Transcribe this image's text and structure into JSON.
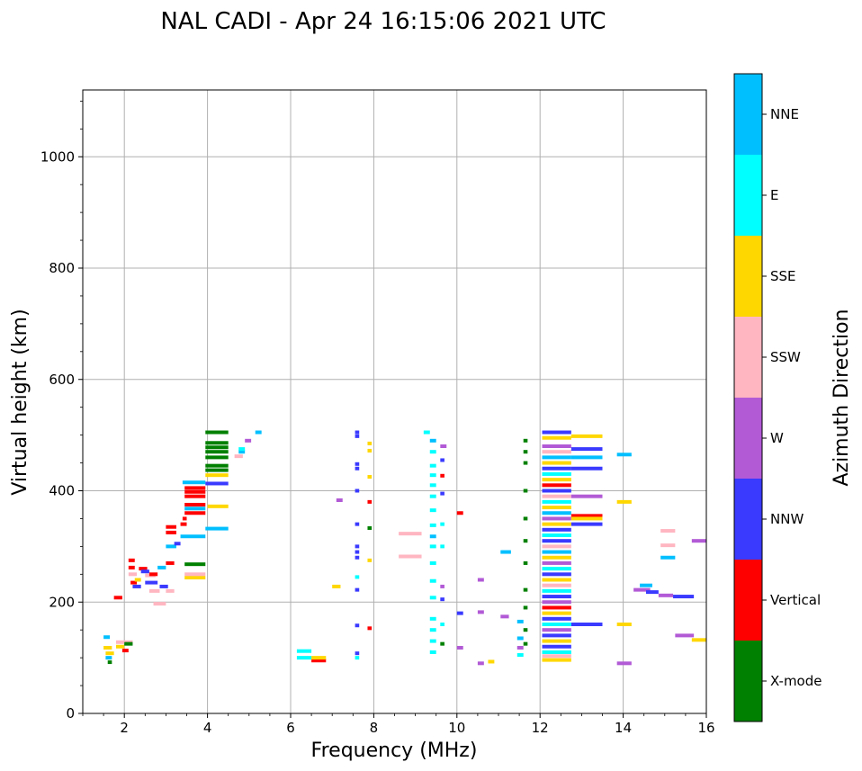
{
  "chart_data": {
    "type": "scatter",
    "title": "NAL CADI - Apr 24 16:15:06 2021 UTC",
    "xlabel": "Frequency (MHz)",
    "ylabel": "Virtual height (km)",
    "xlim": [
      1,
      16
    ],
    "ylim": [
      0,
      1120
    ],
    "xticks": [
      2,
      4,
      6,
      8,
      10,
      12,
      14,
      16
    ],
    "yticks": [
      0,
      200,
      400,
      600,
      800,
      1000
    ],
    "grid": true,
    "colorbar": {
      "label": "Azimuth Direction",
      "categories": [
        {
          "name": "X-mode",
          "color": "#008000"
        },
        {
          "name": "Vertical",
          "color": "#ff0000"
        },
        {
          "name": "NNW",
          "color": "#3a3aff"
        },
        {
          "name": "W",
          "color": "#b25ad6"
        },
        {
          "name": "SSW",
          "color": "#ffb6c1"
        },
        {
          "name": "SSE",
          "color": "#ffd700"
        },
        {
          "name": "E",
          "color": "#00ffff"
        },
        {
          "name": "NNE",
          "color": "#00bfff"
        }
      ]
    },
    "segments": [
      [
        "NNE",
        1.5,
        1.65,
        137
      ],
      [
        "SSE",
        1.5,
        1.7,
        118
      ],
      [
        "SSE",
        1.55,
        1.75,
        108
      ],
      [
        "NNE",
        1.55,
        1.7,
        100
      ],
      [
        "X-mode",
        1.6,
        1.7,
        92
      ],
      [
        "SSE",
        1.8,
        2.0,
        120
      ],
      [
        "Vertical",
        1.95,
        2.1,
        113
      ],
      [
        "SSW",
        1.8,
        2.2,
        128
      ],
      [
        "X-mode",
        2.0,
        2.2,
        125
      ],
      [
        "Vertical",
        1.75,
        1.95,
        208
      ],
      [
        "Vertical",
        2.1,
        2.25,
        275
      ],
      [
        "Vertical",
        2.1,
        2.25,
        262
      ],
      [
        "SSW",
        2.1,
        2.3,
        250
      ],
      [
        "Vertical",
        2.15,
        2.3,
        235
      ],
      [
        "NNW",
        2.2,
        2.4,
        228
      ],
      [
        "SSE",
        2.25,
        2.4,
        240
      ],
      [
        "Vertical",
        2.35,
        2.55,
        260
      ],
      [
        "NNW",
        2.4,
        2.6,
        255
      ],
      [
        "SSW",
        2.5,
        2.75,
        248
      ],
      [
        "Vertical",
        2.6,
        2.8,
        250
      ],
      [
        "NNW",
        2.5,
        2.8,
        235
      ],
      [
        "SSW",
        2.6,
        2.85,
        220
      ],
      [
        "NNE",
        2.8,
        3.0,
        262
      ],
      [
        "NNW",
        2.85,
        3.05,
        228
      ],
      [
        "SSW",
        3.0,
        3.2,
        220
      ],
      [
        "SSW",
        2.7,
        3.0,
        197
      ],
      [
        "Vertical",
        3.0,
        3.2,
        270
      ],
      [
        "NNE",
        3.0,
        3.25,
        300
      ],
      [
        "Vertical",
        3.0,
        3.25,
        325
      ],
      [
        "Vertical",
        3.0,
        3.25,
        335
      ],
      [
        "NNW",
        3.2,
        3.35,
        305
      ],
      [
        "Vertical",
        3.35,
        3.5,
        340
      ],
      [
        "Vertical",
        3.4,
        3.5,
        350
      ],
      [
        "Vertical",
        3.45,
        3.95,
        360
      ],
      [
        "Vertical",
        3.45,
        3.95,
        375
      ],
      [
        "Vertical",
        3.45,
        3.95,
        390
      ],
      [
        "Vertical",
        3.45,
        3.95,
        398
      ],
      [
        "Vertical",
        3.45,
        3.95,
        405
      ],
      [
        "NNE",
        3.4,
        3.95,
        415
      ],
      [
        "NNE",
        3.45,
        3.95,
        368
      ],
      [
        "X-mode",
        3.45,
        3.95,
        268
      ],
      [
        "SSE",
        3.45,
        3.95,
        244
      ],
      [
        "SSW",
        3.45,
        3.95,
        250
      ],
      [
        "NNE",
        3.35,
        3.95,
        318
      ],
      [
        "NNE",
        3.95,
        4.5,
        332
      ],
      [
        "NNW",
        3.95,
        4.5,
        413
      ],
      [
        "SSE",
        3.95,
        4.5,
        428
      ],
      [
        "X-mode",
        3.95,
        4.5,
        437
      ],
      [
        "X-mode",
        3.95,
        4.5,
        445
      ],
      [
        "X-mode",
        3.95,
        4.5,
        460
      ],
      [
        "X-mode",
        3.95,
        4.5,
        470
      ],
      [
        "X-mode",
        3.95,
        4.5,
        478
      ],
      [
        "X-mode",
        3.95,
        4.5,
        486
      ],
      [
        "X-mode",
        3.95,
        4.5,
        505
      ],
      [
        "SSE",
        4.0,
        4.5,
        372
      ],
      [
        "NNE",
        4.75,
        4.9,
        470
      ],
      [
        "E",
        4.75,
        4.9,
        475
      ],
      [
        "SSW",
        4.65,
        4.85,
        462
      ],
      [
        "W",
        4.9,
        5.05,
        490
      ],
      [
        "NNE",
        5.15,
        5.3,
        505
      ],
      [
        "E",
        6.15,
        6.5,
        112
      ],
      [
        "Vertical",
        6.5,
        6.85,
        95
      ],
      [
        "SSE",
        6.5,
        6.85,
        100
      ],
      [
        "E",
        6.15,
        6.5,
        100
      ],
      [
        "SSE",
        7.0,
        7.2,
        228
      ],
      [
        "W",
        7.1,
        7.25,
        383
      ],
      [
        "NNW",
        7.55,
        7.65,
        505
      ],
      [
        "NNW",
        7.55,
        7.65,
        498
      ],
      [
        "NNW",
        7.55,
        7.65,
        448
      ],
      [
        "NNW",
        7.55,
        7.65,
        440
      ],
      [
        "NNW",
        7.55,
        7.65,
        400
      ],
      [
        "NNW",
        7.55,
        7.65,
        340
      ],
      [
        "NNW",
        7.55,
        7.65,
        300
      ],
      [
        "NNW",
        7.55,
        7.65,
        290
      ],
      [
        "NNW",
        7.55,
        7.65,
        280
      ],
      [
        "E",
        7.55,
        7.65,
        245
      ],
      [
        "NNW",
        7.55,
        7.65,
        222
      ],
      [
        "NNW",
        7.55,
        7.65,
        158
      ],
      [
        "NNW",
        7.55,
        7.65,
        108
      ],
      [
        "E",
        7.55,
        7.65,
        100
      ],
      [
        "SSE",
        7.85,
        7.95,
        485
      ],
      [
        "SSE",
        7.85,
        7.95,
        472
      ],
      [
        "SSE",
        7.85,
        7.95,
        425
      ],
      [
        "Vertical",
        7.85,
        7.95,
        380
      ],
      [
        "X-mode",
        7.85,
        7.95,
        333
      ],
      [
        "SSE",
        7.85,
        7.95,
        275
      ],
      [
        "Vertical",
        7.85,
        7.95,
        153
      ],
      [
        "SSW",
        8.6,
        9.15,
        323
      ],
      [
        "SSW",
        8.6,
        9.15,
        282
      ],
      [
        "E",
        9.2,
        9.35,
        505
      ],
      [
        "NNE",
        9.35,
        9.5,
        490
      ],
      [
        "E",
        9.35,
        9.5,
        470
      ],
      [
        "E",
        9.35,
        9.5,
        445
      ],
      [
        "E",
        9.35,
        9.5,
        428
      ],
      [
        "E",
        9.35,
        9.5,
        410
      ],
      [
        "E",
        9.35,
        9.5,
        390
      ],
      [
        "E",
        9.35,
        9.5,
        365
      ],
      [
        "E",
        9.35,
        9.5,
        338
      ],
      [
        "NNE",
        9.35,
        9.5,
        318
      ],
      [
        "E",
        9.35,
        9.5,
        300
      ],
      [
        "E",
        9.35,
        9.5,
        270
      ],
      [
        "E",
        9.35,
        9.5,
        238
      ],
      [
        "E",
        9.35,
        9.5,
        208
      ],
      [
        "E",
        9.35,
        9.5,
        170
      ],
      [
        "E",
        9.35,
        9.5,
        150
      ],
      [
        "E",
        9.35,
        9.5,
        130
      ],
      [
        "E",
        9.35,
        9.5,
        110
      ],
      [
        "X-mode",
        9.6,
        9.7,
        125
      ],
      [
        "W",
        9.6,
        9.75,
        480
      ],
      [
        "NNW",
        9.6,
        9.7,
        455
      ],
      [
        "Vertical",
        9.6,
        9.7,
        427
      ],
      [
        "NNW",
        9.6,
        9.7,
        395
      ],
      [
        "E",
        9.6,
        9.7,
        340
      ],
      [
        "E",
        9.6,
        9.7,
        300
      ],
      [
        "W",
        9.6,
        9.7,
        228
      ],
      [
        "NNW",
        9.6,
        9.7,
        205
      ],
      [
        "E",
        9.6,
        9.7,
        160
      ],
      [
        "Vertical",
        10.0,
        10.15,
        360
      ],
      [
        "NNW",
        10.0,
        10.15,
        180
      ],
      [
        "W",
        10.0,
        10.15,
        118
      ],
      [
        "W",
        10.5,
        10.65,
        240
      ],
      [
        "W",
        10.5,
        10.65,
        182
      ],
      [
        "W",
        10.5,
        10.65,
        90
      ],
      [
        "SSE",
        10.75,
        10.9,
        93
      ],
      [
        "NNE",
        11.05,
        11.3,
        290
      ],
      [
        "W",
        11.05,
        11.25,
        174
      ],
      [
        "NNE",
        11.45,
        11.6,
        165
      ],
      [
        "NNE",
        11.45,
        11.6,
        135
      ],
      [
        "W",
        11.45,
        11.6,
        118
      ],
      [
        "E",
        11.45,
        11.6,
        105
      ],
      [
        "X-mode",
        11.6,
        11.7,
        490
      ],
      [
        "X-mode",
        11.6,
        11.7,
        470
      ],
      [
        "X-mode",
        11.6,
        11.7,
        450
      ],
      [
        "X-mode",
        11.6,
        11.7,
        400
      ],
      [
        "X-mode",
        11.6,
        11.7,
        350
      ],
      [
        "X-mode",
        11.6,
        11.7,
        310
      ],
      [
        "X-mode",
        11.6,
        11.7,
        270
      ],
      [
        "X-mode",
        11.6,
        11.7,
        222
      ],
      [
        "X-mode",
        11.6,
        11.7,
        190
      ],
      [
        "X-mode",
        11.6,
        11.7,
        150
      ],
      [
        "X-mode",
        11.6,
        11.7,
        125
      ],
      [
        "NNW",
        12.05,
        12.75,
        505
      ],
      [
        "SSE",
        12.05,
        12.75,
        495
      ],
      [
        "W",
        12.05,
        12.75,
        480
      ],
      [
        "SSW",
        12.05,
        12.75,
        470
      ],
      [
        "NNE",
        12.05,
        12.75,
        460
      ],
      [
        "SSE",
        12.05,
        12.75,
        450
      ],
      [
        "NNW",
        12.05,
        12.75,
        440
      ],
      [
        "E",
        12.05,
        12.75,
        430
      ],
      [
        "SSE",
        12.05,
        12.75,
        420
      ],
      [
        "Vertical",
        12.05,
        12.75,
        410
      ],
      [
        "NNW",
        12.05,
        12.75,
        400
      ],
      [
        "SSW",
        12.05,
        12.75,
        390
      ],
      [
        "E",
        12.05,
        12.75,
        380
      ],
      [
        "SSE",
        12.05,
        12.75,
        370
      ],
      [
        "NNE",
        12.05,
        12.75,
        360
      ],
      [
        "W",
        12.05,
        12.75,
        350
      ],
      [
        "SSE",
        12.05,
        12.75,
        340
      ],
      [
        "NNW",
        12.05,
        12.75,
        330
      ],
      [
        "E",
        12.05,
        12.75,
        320
      ],
      [
        "NNW",
        12.05,
        12.75,
        310
      ],
      [
        "SSW",
        12.05,
        12.75,
        300
      ],
      [
        "NNE",
        12.05,
        12.75,
        290
      ],
      [
        "SSE",
        12.05,
        12.75,
        280
      ],
      [
        "W",
        12.05,
        12.75,
        270
      ],
      [
        "E",
        12.05,
        12.75,
        260
      ],
      [
        "NNW",
        12.05,
        12.75,
        250
      ],
      [
        "SSE",
        12.05,
        12.75,
        240
      ],
      [
        "SSW",
        12.05,
        12.75,
        230
      ],
      [
        "E",
        12.05,
        12.75,
        220
      ],
      [
        "NNW",
        12.05,
        12.75,
        210
      ],
      [
        "W",
        12.05,
        12.75,
        200
      ],
      [
        "Vertical",
        12.05,
        12.75,
        190
      ],
      [
        "SSE",
        12.05,
        12.75,
        180
      ],
      [
        "NNW",
        12.05,
        12.75,
        170
      ],
      [
        "E",
        12.05,
        12.75,
        160
      ],
      [
        "W",
        12.05,
        12.75,
        150
      ],
      [
        "NNW",
        12.05,
        12.75,
        140
      ],
      [
        "SSE",
        12.05,
        12.75,
        130
      ],
      [
        "NNW",
        12.05,
        12.75,
        120
      ],
      [
        "E",
        12.05,
        12.75,
        110
      ],
      [
        "SSW",
        12.05,
        12.75,
        103
      ],
      [
        "SSE",
        12.05,
        12.75,
        96
      ],
      [
        "SSE",
        12.75,
        13.5,
        498
      ],
      [
        "NNW",
        12.75,
        13.5,
        475
      ],
      [
        "NNE",
        12.75,
        13.5,
        460
      ],
      [
        "NNW",
        12.75,
        13.5,
        440
      ],
      [
        "W",
        12.75,
        13.5,
        390
      ],
      [
        "Vertical",
        12.75,
        13.5,
        355
      ],
      [
        "SSE",
        12.75,
        13.5,
        350
      ],
      [
        "NNW",
        12.75,
        13.5,
        340
      ],
      [
        "NNW",
        12.75,
        13.5,
        160
      ],
      [
        "NNE",
        13.85,
        14.2,
        465
      ],
      [
        "SSE",
        13.85,
        14.2,
        380
      ],
      [
        "SSE",
        13.85,
        14.2,
        160
      ],
      [
        "W",
        13.85,
        14.2,
        90
      ],
      [
        "W",
        14.25,
        14.65,
        222
      ],
      [
        "NNE",
        14.4,
        14.7,
        230
      ],
      [
        "NNW",
        14.55,
        14.85,
        218
      ],
      [
        "W",
        14.85,
        15.2,
        212
      ],
      [
        "NNW",
        15.2,
        15.7,
        210
      ],
      [
        "NNE",
        14.9,
        15.25,
        280
      ],
      [
        "SSW",
        14.9,
        15.25,
        302
      ],
      [
        "SSW",
        14.9,
        15.25,
        328
      ],
      [
        "W",
        15.25,
        15.7,
        140
      ],
      [
        "W",
        15.65,
        16,
        310
      ],
      [
        "SSE",
        15.65,
        16,
        132
      ]
    ]
  }
}
